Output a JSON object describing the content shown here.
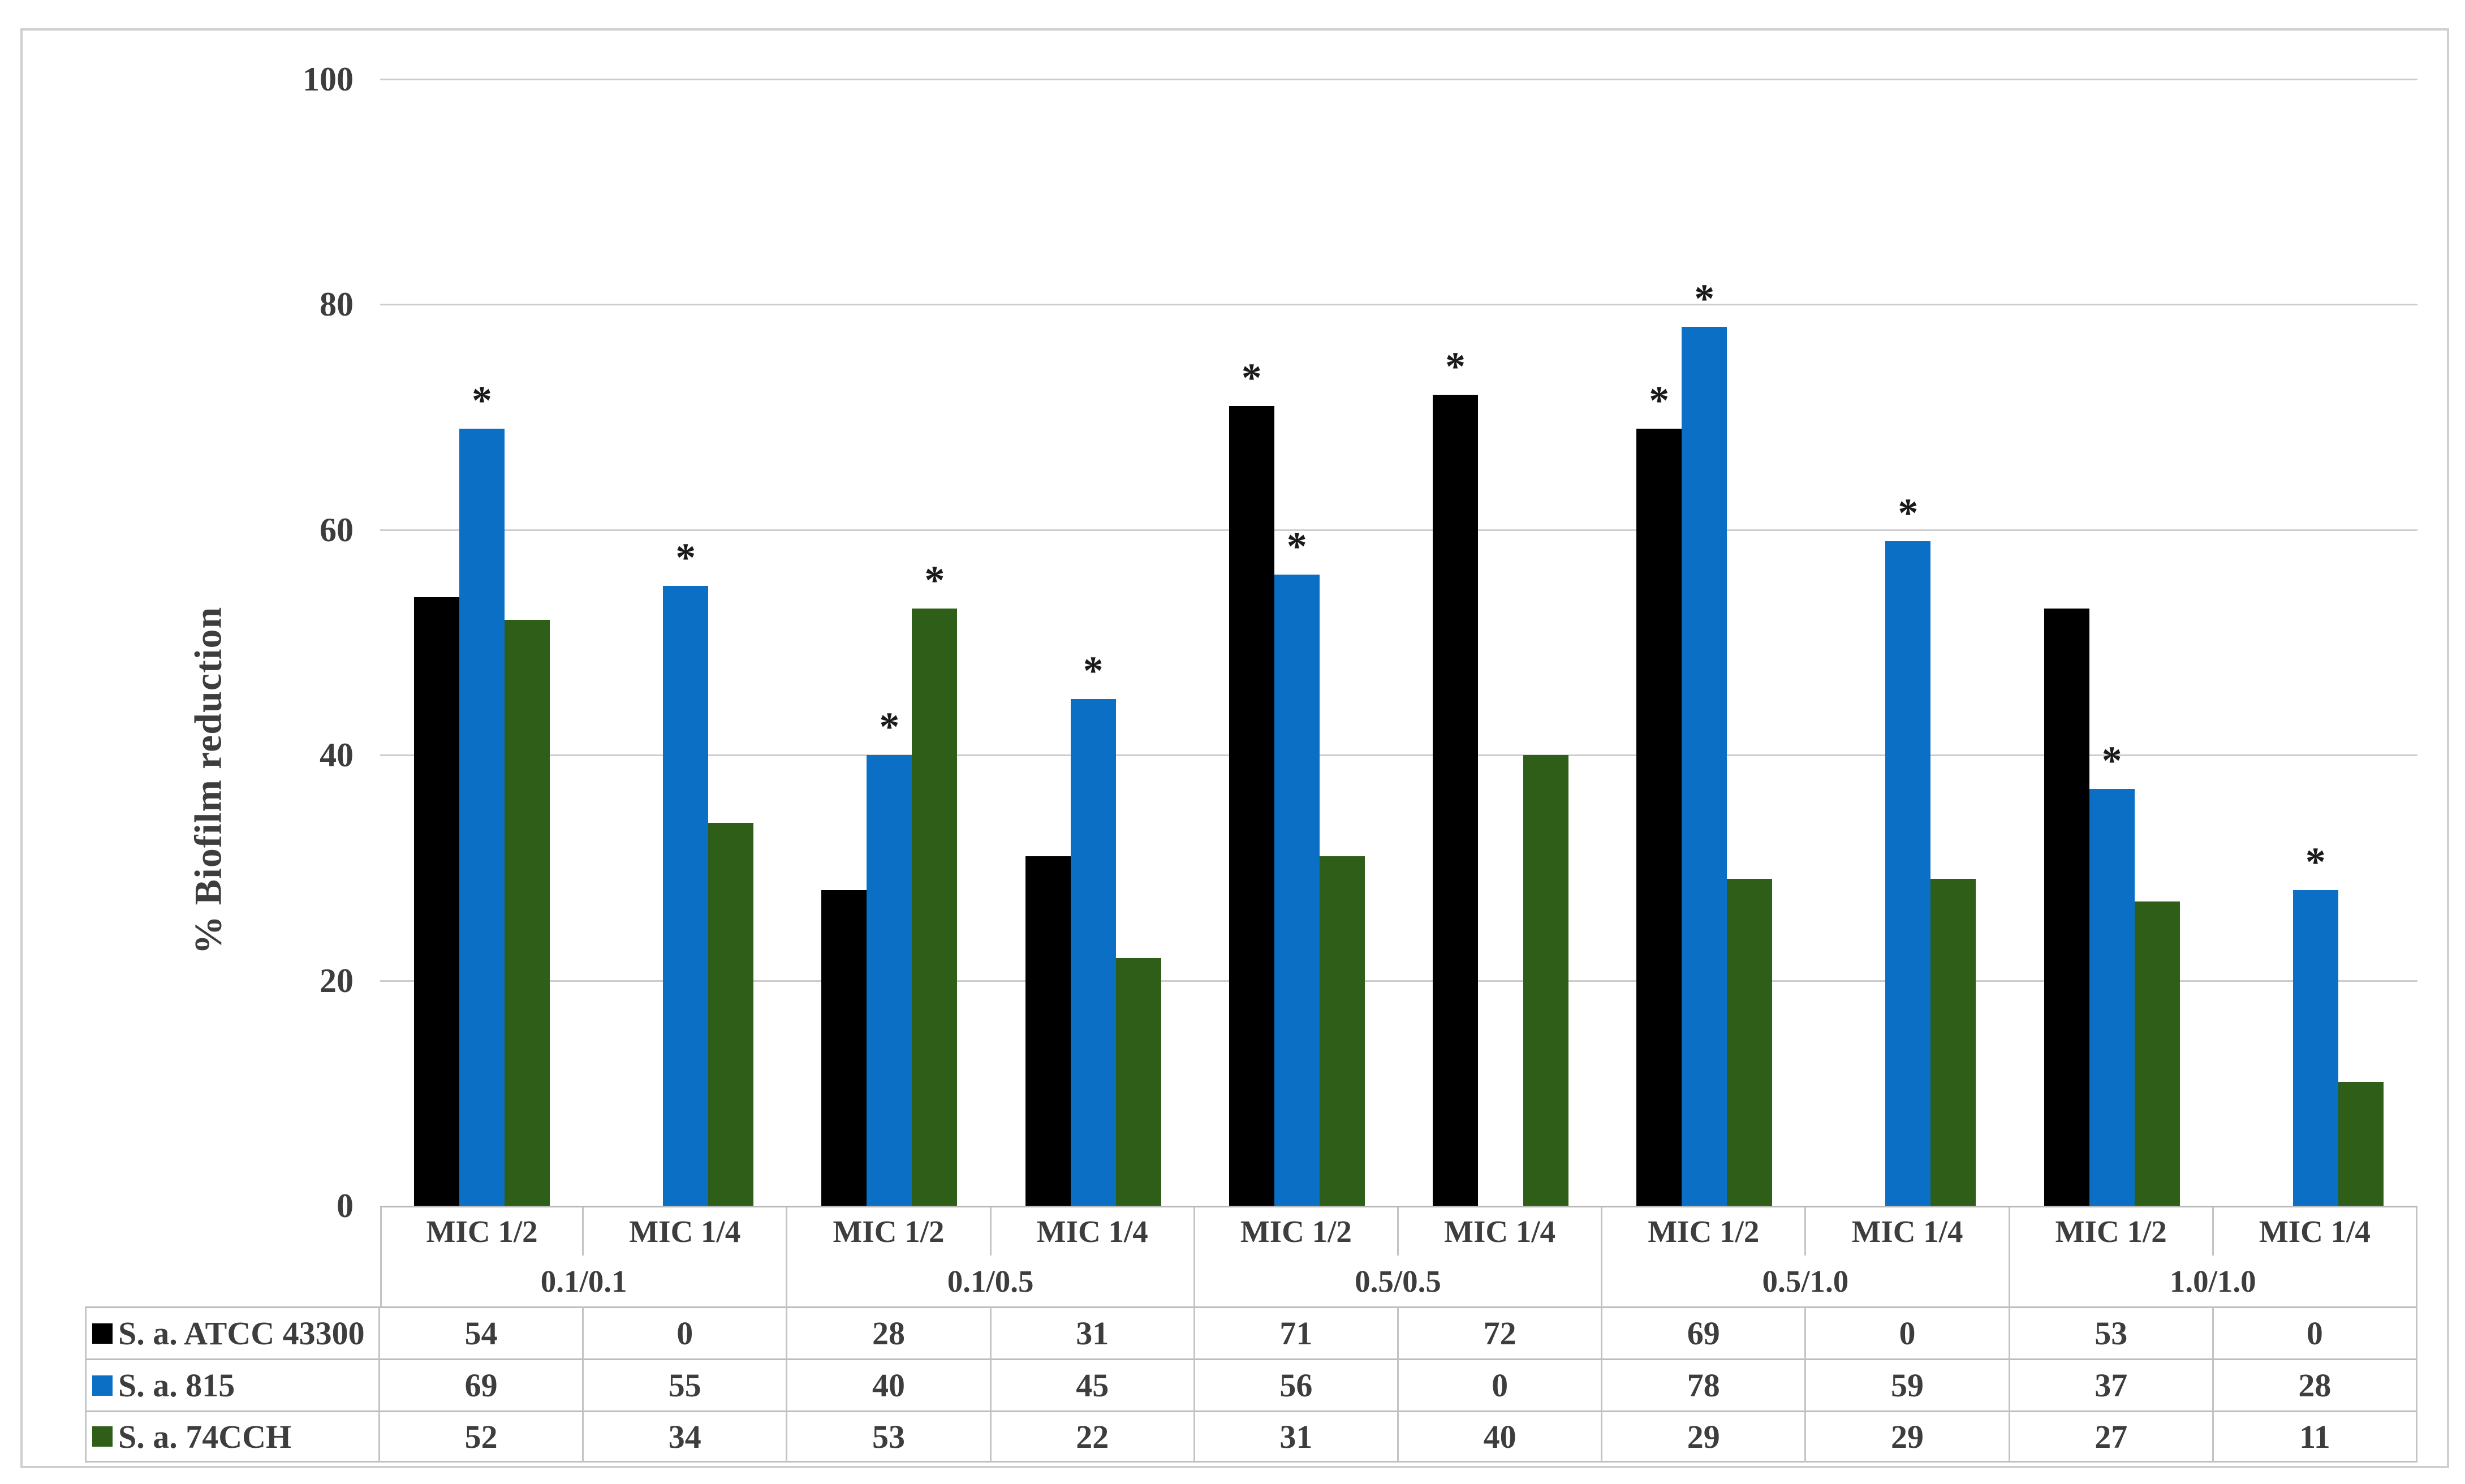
{
  "chart_data": {
    "type": "bar",
    "title": "",
    "ylabel": "% Biofilm reduction",
    "ylim": [
      0,
      100
    ],
    "yticks": [
      0,
      20,
      40,
      60,
      80,
      100
    ],
    "grid": true,
    "legend_position": "table-left",
    "significance_marker": "*",
    "group_level1": [
      "MIC 1/2",
      "MIC 1/4",
      "MIC 1/2",
      "MIC 1/4",
      "MIC 1/2",
      "MIC 1/4",
      "MIC 1/2",
      "MIC 1/4",
      "MIC 1/2",
      "MIC 1/4"
    ],
    "group_level2": [
      "0.1/0.1",
      "0.1/0.5",
      "0.5/0.5",
      "0.5/1.0",
      "1.0/1.0"
    ],
    "series": [
      {
        "name": "S. a. ATCC 43300",
        "color": "#000000",
        "values": [
          54,
          0,
          28,
          31,
          71,
          72,
          69,
          0,
          53,
          0
        ],
        "significant": [
          false,
          false,
          false,
          false,
          true,
          true,
          true,
          false,
          false,
          false
        ]
      },
      {
        "name": "S. a. 815",
        "color": "#0b70c5",
        "values": [
          69,
          55,
          40,
          45,
          56,
          0,
          78,
          59,
          37,
          28
        ],
        "significant": [
          true,
          true,
          true,
          true,
          true,
          false,
          true,
          true,
          true,
          true
        ]
      },
      {
        "name": "S. a. 74CCH",
        "color": "#2e5e18",
        "values": [
          52,
          34,
          53,
          22,
          31,
          40,
          29,
          29,
          27,
          11
        ],
        "significant": [
          false,
          false,
          true,
          false,
          false,
          false,
          false,
          false,
          false,
          false
        ]
      }
    ]
  },
  "style_colors": {
    "gridline": "#cdcdcd",
    "axis_line": "#b9b9b9",
    "table_border": "#c4c4c4",
    "frame_border": "#cfcfcf",
    "text": "#3d3d3d"
  }
}
